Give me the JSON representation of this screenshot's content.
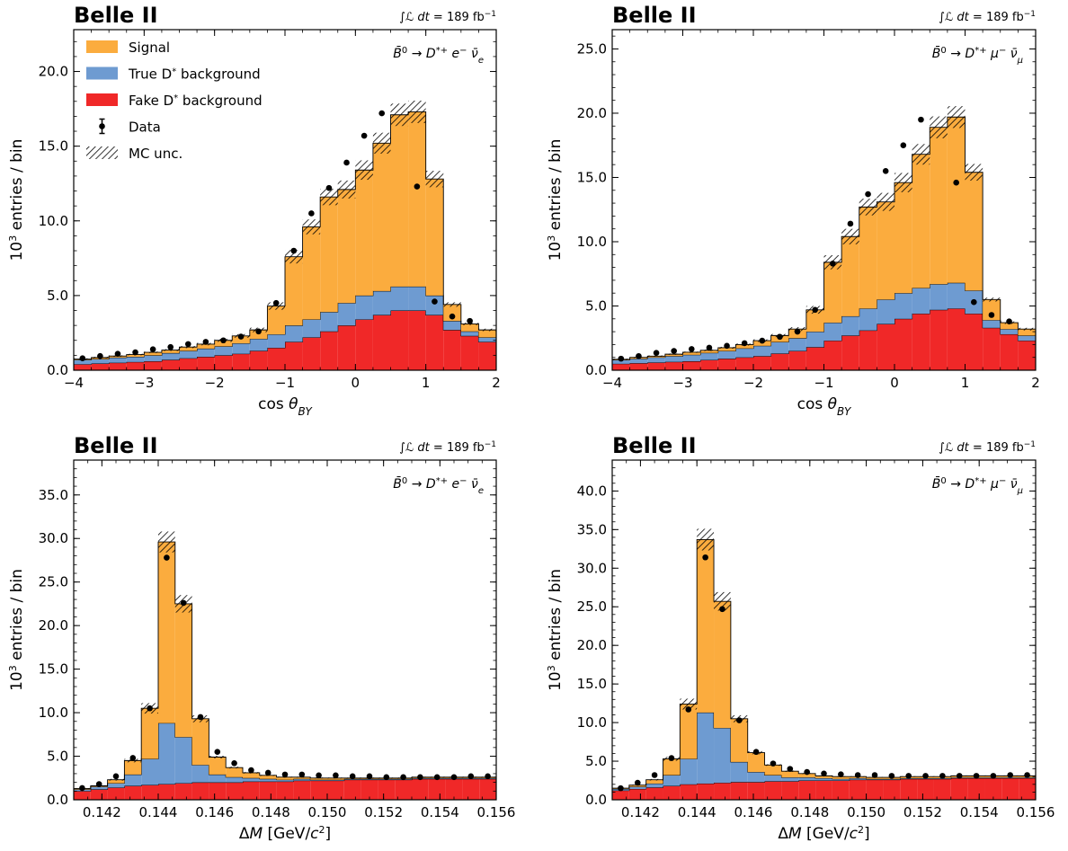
{
  "colors": {
    "signal": "#fbac3e",
    "true_bkg": "#6e9bd1",
    "fake_bkg": "#f02828",
    "data": "#000000"
  },
  "legend": [
    "Signal",
    "True D* background",
    "Fake D* background",
    "Data",
    "MC unc."
  ],
  "chart_data": [
    {
      "type": "bar",
      "stacked": true,
      "header": "Belle II",
      "lumi": "∫ℒ dt = 189 fb⁻¹",
      "channel": "B̄⁰ → D*⁺ e⁻ ν̄ₑ",
      "xlabel": "cos θ_BY",
      "ylabel": "10³ entries / bin",
      "xlim": [
        -4,
        2
      ],
      "ylim": [
        0,
        22.8
      ],
      "xticks": [
        -4,
        -3,
        -2,
        -1,
        0,
        1,
        2
      ],
      "xticklabels": [
        "−4",
        "−3",
        "−2",
        "−1",
        "0",
        "1",
        "2"
      ],
      "yticks": [
        0,
        5,
        10,
        15,
        20
      ],
      "yticklabels": [
        "0.0",
        "5.0",
        "10.0",
        "15.0",
        "20.0"
      ],
      "legend": "top-left",
      "bin_edges": [
        -4,
        -3.75,
        -3.5,
        -3.25,
        -3,
        -2.75,
        -2.5,
        -2.25,
        -2,
        -1.75,
        -1.5,
        -1.25,
        -1,
        -0.75,
        -0.5,
        -0.25,
        0,
        0.25,
        0.5,
        0.75,
        1,
        1.25,
        1.5,
        1.75,
        2
      ],
      "series": [
        {
          "name": "Fake D* background",
          "values": [
            0.4,
            0.45,
            0.5,
            0.55,
            0.6,
            0.7,
            0.8,
            0.9,
            1.0,
            1.1,
            1.3,
            1.5,
            1.9,
            2.2,
            2.6,
            3.0,
            3.4,
            3.7,
            4.0,
            4.0,
            3.7,
            2.7,
            2.3,
            1.9
          ]
        },
        {
          "name": "True D* background",
          "values": [
            0.3,
            0.3,
            0.35,
            0.35,
            0.4,
            0.45,
            0.5,
            0.55,
            0.6,
            0.7,
            0.8,
            0.9,
            1.1,
            1.2,
            1.3,
            1.5,
            1.6,
            1.6,
            1.6,
            1.6,
            1.3,
            0.6,
            0.3,
            0.3
          ]
        },
        {
          "name": "Signal",
          "values": [
            0.05,
            0.1,
            0.1,
            0.15,
            0.2,
            0.2,
            0.25,
            0.3,
            0.4,
            0.5,
            0.6,
            1.9,
            4.6,
            6.2,
            7.7,
            7.6,
            8.4,
            9.9,
            11.5,
            11.7,
            7.8,
            1.1,
            0.5,
            0.5
          ]
        }
      ],
      "mc_unc": [
        0.05,
        0.05,
        0.05,
        0.05,
        0.05,
        0.06,
        0.07,
        0.08,
        0.1,
        0.12,
        0.15,
        0.25,
        0.45,
        0.5,
        0.55,
        0.6,
        0.65,
        0.7,
        0.75,
        0.75,
        0.55,
        0.15,
        0.08,
        0.08
      ],
      "data_points": [
        0.8,
        0.95,
        1.1,
        1.2,
        1.4,
        1.55,
        1.75,
        1.9,
        2.0,
        2.25,
        2.6,
        4.5,
        8.0,
        10.5,
        12.2,
        13.9,
        15.7,
        17.2,
        null,
        12.3,
        4.6,
        3.6,
        3.3,
        null
      ]
    },
    {
      "type": "bar",
      "stacked": true,
      "header": "Belle II",
      "lumi": "∫ℒ dt = 189 fb⁻¹",
      "channel": "B̄⁰ → D*⁺ μ⁻ ν̄μ",
      "xlabel": "cos θ_BY",
      "ylabel": "10³ entries / bin",
      "xlim": [
        -4,
        2
      ],
      "ylim": [
        0,
        26.5
      ],
      "xticks": [
        -4,
        -3,
        -2,
        -1,
        0,
        1,
        2
      ],
      "xticklabels": [
        "−4",
        "−3",
        "−2",
        "−1",
        "0",
        "1",
        "2"
      ],
      "yticks": [
        0,
        5,
        10,
        15,
        20,
        25
      ],
      "yticklabels": [
        "0.0",
        "5.0",
        "10.0",
        "15.0",
        "20.0",
        "25.0"
      ],
      "bin_edges": [
        -4,
        -3.75,
        -3.5,
        -3.25,
        -3,
        -2.75,
        -2.5,
        -2.25,
        -2,
        -1.75,
        -1.5,
        -1.25,
        -1,
        -0.75,
        -0.5,
        -0.25,
        0,
        0.25,
        0.5,
        0.75,
        1,
        1.25,
        1.5,
        1.75,
        2
      ],
      "series": [
        {
          "name": "Fake D* background",
          "values": [
            0.5,
            0.55,
            0.6,
            0.65,
            0.7,
            0.8,
            0.9,
            1.0,
            1.1,
            1.3,
            1.5,
            1.8,
            2.3,
            2.7,
            3.1,
            3.6,
            4.0,
            4.4,
            4.7,
            4.8,
            4.4,
            3.3,
            2.8,
            2.3
          ]
        },
        {
          "name": "True D* background",
          "values": [
            0.3,
            0.35,
            0.4,
            0.45,
            0.5,
            0.55,
            0.6,
            0.7,
            0.8,
            0.9,
            1.0,
            1.2,
            1.4,
            1.5,
            1.7,
            1.9,
            2.0,
            2.0,
            2.0,
            2.0,
            1.8,
            0.6,
            0.4,
            0.4
          ]
        },
        {
          "name": "Signal",
          "values": [
            0.05,
            0.1,
            0.1,
            0.15,
            0.2,
            0.2,
            0.25,
            0.3,
            0.4,
            0.5,
            0.7,
            1.7,
            4.7,
            6.2,
            7.9,
            7.6,
            8.6,
            10.4,
            12.2,
            12.9,
            9.2,
            1.6,
            0.5,
            0.5
          ]
        }
      ],
      "mc_unc": [
        0.05,
        0.05,
        0.05,
        0.05,
        0.05,
        0.06,
        0.07,
        0.08,
        0.1,
        0.12,
        0.15,
        0.3,
        0.55,
        0.6,
        0.65,
        0.7,
        0.75,
        0.8,
        0.85,
        0.85,
        0.65,
        0.15,
        0.1,
        0.1
      ],
      "data_points": [
        0.9,
        1.1,
        1.35,
        1.5,
        1.65,
        1.75,
        1.9,
        2.1,
        2.3,
        2.6,
        3.0,
        4.7,
        8.3,
        11.4,
        13.7,
        15.5,
        17.5,
        19.5,
        null,
        14.6,
        5.3,
        4.3,
        3.8,
        null
      ]
    },
    {
      "type": "bar",
      "stacked": true,
      "header": "Belle II",
      "lumi": "∫ℒ dt = 189 fb⁻¹",
      "channel": "B̄⁰ → D*⁺ e⁻ ν̄ₑ",
      "xlabel": "ΔM [GeV/c²]",
      "ylabel": "10³ entries / bin",
      "xlim": [
        0.141,
        0.156
      ],
      "ylim": [
        0,
        39
      ],
      "xticks": [
        0.142,
        0.144,
        0.146,
        0.148,
        0.15,
        0.152,
        0.154,
        0.156
      ],
      "xticklabels": [
        "0.142",
        "0.144",
        "0.146",
        "0.148",
        "0.150",
        "0.152",
        "0.154",
        "0.156"
      ],
      "yticks": [
        0,
        5,
        10,
        15,
        20,
        25,
        30,
        35
      ],
      "yticklabels": [
        "0.0",
        "5.0",
        "10.0",
        "15.0",
        "20.0",
        "25.0",
        "30.0",
        "35.0"
      ],
      "bin_edges": [
        0.141,
        0.1416,
        0.1422,
        0.1428,
        0.1434,
        0.144,
        0.1446,
        0.1452,
        0.1458,
        0.1464,
        0.147,
        0.1476,
        0.1482,
        0.1488,
        0.1494,
        0.15,
        0.1506,
        0.1512,
        0.1518,
        0.1524,
        0.153,
        0.1536,
        0.1542,
        0.1548,
        0.1554,
        0.156
      ],
      "series": [
        {
          "name": "Fake D* background",
          "values": [
            1.0,
            1.2,
            1.4,
            1.6,
            1.7,
            1.8,
            1.9,
            2.0,
            2.0,
            2.0,
            2.1,
            2.1,
            2.1,
            2.2,
            2.2,
            2.2,
            2.3,
            2.3,
            2.3,
            2.3,
            2.4,
            2.4,
            2.4,
            2.4,
            2.4
          ]
        },
        {
          "name": "True D* background",
          "values": [
            0.2,
            0.3,
            0.5,
            1.3,
            3.0,
            7.0,
            5.3,
            2.0,
            0.9,
            0.6,
            0.4,
            0.3,
            0.2,
            0.2,
            0.1,
            0.1,
            0.1,
            0.1,
            0.1,
            0.1,
            0.1,
            0.1,
            0.1,
            0.1,
            0.1
          ]
        },
        {
          "name": "Signal",
          "values": [
            0.1,
            0.1,
            0.4,
            1.6,
            5.8,
            20.8,
            15.3,
            5.3,
            2.0,
            1.1,
            0.6,
            0.4,
            0.3,
            0.2,
            0.2,
            0.2,
            0.1,
            0.1,
            0.1,
            0.1,
            0.1,
            0.1,
            0.1,
            0.1,
            0.1
          ]
        }
      ],
      "mc_unc": [
        0.05,
        0.06,
        0.1,
        0.2,
        0.6,
        1.2,
        1.0,
        0.4,
        0.15,
        0.1,
        0.08,
        0.06,
        0.05,
        0.05,
        0.05,
        0.05,
        0.05,
        0.05,
        0.05,
        0.05,
        0.05,
        0.05,
        0.05,
        0.05,
        0.05
      ],
      "data_points": [
        1.35,
        1.8,
        2.7,
        4.8,
        10.5,
        27.8,
        22.6,
        9.5,
        5.5,
        4.2,
        3.4,
        3.1,
        2.9,
        2.9,
        2.8,
        2.8,
        2.7,
        2.7,
        2.6,
        2.6,
        2.6,
        2.6,
        2.6,
        2.7,
        2.7
      ]
    },
    {
      "type": "bar",
      "stacked": true,
      "header": "Belle II",
      "lumi": "∫ℒ dt = 189 fb⁻¹",
      "channel": "B̄⁰ → D*⁺ μ⁻ ν̄μ",
      "xlabel": "ΔM [GeV/c²]",
      "ylabel": "10³ entries / bin",
      "xlim": [
        0.141,
        0.156
      ],
      "ylim": [
        0,
        44
      ],
      "xticks": [
        0.142,
        0.144,
        0.146,
        0.148,
        0.15,
        0.152,
        0.154,
        0.156
      ],
      "xticklabels": [
        "0.142",
        "0.144",
        "0.146",
        "0.148",
        "0.150",
        "0.152",
        "0.154",
        "0.156"
      ],
      "yticks": [
        0,
        5,
        10,
        15,
        20,
        25,
        30,
        35,
        40
      ],
      "yticklabels": [
        "0.0",
        "5.0",
        "10.0",
        "15.0",
        "20.0",
        "25.0",
        "30.0",
        "35.0",
        "40.0"
      ],
      "bin_edges": [
        0.141,
        0.1416,
        0.1422,
        0.1428,
        0.1434,
        0.144,
        0.1446,
        0.1452,
        0.1458,
        0.1464,
        0.147,
        0.1476,
        0.1482,
        0.1488,
        0.1494,
        0.15,
        0.1506,
        0.1512,
        0.1518,
        0.1524,
        0.153,
        0.1536,
        0.1542,
        0.1548,
        0.1554,
        0.156
      ],
      "series": [
        {
          "name": "Fake D* background",
          "values": [
            1.2,
            1.4,
            1.6,
            1.8,
            2.0,
            2.1,
            2.2,
            2.3,
            2.3,
            2.4,
            2.4,
            2.5,
            2.5,
            2.5,
            2.6,
            2.6,
            2.6,
            2.7,
            2.7,
            2.7,
            2.8,
            2.8,
            2.8,
            2.8,
            2.8
          ]
        },
        {
          "name": "True D* background",
          "values": [
            0.2,
            0.3,
            0.5,
            1.4,
            3.3,
            9.2,
            7.1,
            2.6,
            1.3,
            0.8,
            0.5,
            0.4,
            0.3,
            0.2,
            0.2,
            0.1,
            0.1,
            0.1,
            0.1,
            0.1,
            0.1,
            0.1,
            0.1,
            0.1,
            0.1
          ]
        },
        {
          "name": "Signal",
          "values": [
            0.1,
            0.2,
            0.5,
            2.1,
            7.1,
            22.4,
            16.4,
            5.6,
            2.5,
            1.3,
            0.8,
            0.5,
            0.3,
            0.3,
            0.2,
            0.2,
            0.2,
            0.2,
            0.2,
            0.2,
            0.2,
            0.2,
            0.2,
            0.2,
            0.2
          ]
        }
      ],
      "mc_unc": [
        0.05,
        0.06,
        0.1,
        0.25,
        0.7,
        1.4,
        1.2,
        0.45,
        0.2,
        0.1,
        0.08,
        0.06,
        0.05,
        0.05,
        0.05,
        0.05,
        0.05,
        0.05,
        0.05,
        0.05,
        0.05,
        0.05,
        0.05,
        0.05,
        0.05
      ],
      "data_points": [
        1.5,
        2.2,
        3.2,
        5.4,
        11.7,
        31.4,
        24.7,
        10.3,
        6.2,
        4.7,
        4.0,
        3.6,
        3.4,
        3.3,
        3.2,
        3.2,
        3.1,
        3.1,
        3.1,
        3.1,
        3.1,
        3.1,
        3.1,
        3.2,
        3.2
      ]
    }
  ]
}
